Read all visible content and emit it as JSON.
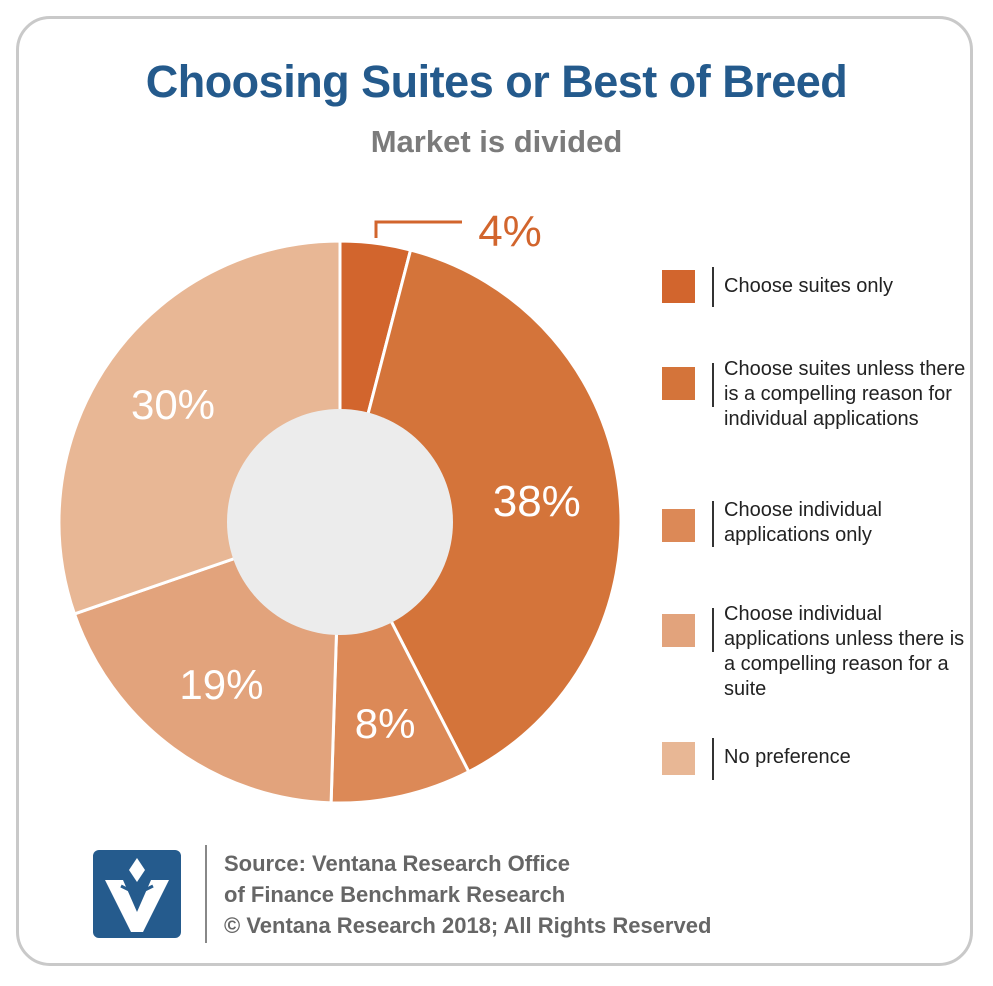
{
  "chart_data": {
    "type": "pie",
    "title": "Choosing Suites or Best of Breed",
    "subtitle": "Market is divided",
    "donut": true,
    "categories": [
      "Choose suites only",
      "Choose suites unless there is a compelling reason for individual applications",
      "Choose individual applications only",
      "Choose individual applications unless there is a compelling reason for a suite",
      "No preference"
    ],
    "values": [
      4,
      38,
      8,
      19,
      30
    ],
    "labels": [
      "4%",
      "38%",
      "8%",
      "19%",
      "30%"
    ],
    "colors": [
      "#d2652d",
      "#d4743a",
      "#dc8957",
      "#e2a37c",
      "#e8b795"
    ],
    "center_color": "#ececec",
    "label_colors": [
      "#d2652d",
      "#ffffff",
      "#ffffff",
      "#ffffff",
      "#ffffff"
    ],
    "legend_position": "right"
  },
  "footer": {
    "source_line1": "Source: Ventana Research Office",
    "source_line2": "of Finance Benchmark Research",
    "copyright": "© Ventana Research 2018; All Rights Reserved"
  }
}
